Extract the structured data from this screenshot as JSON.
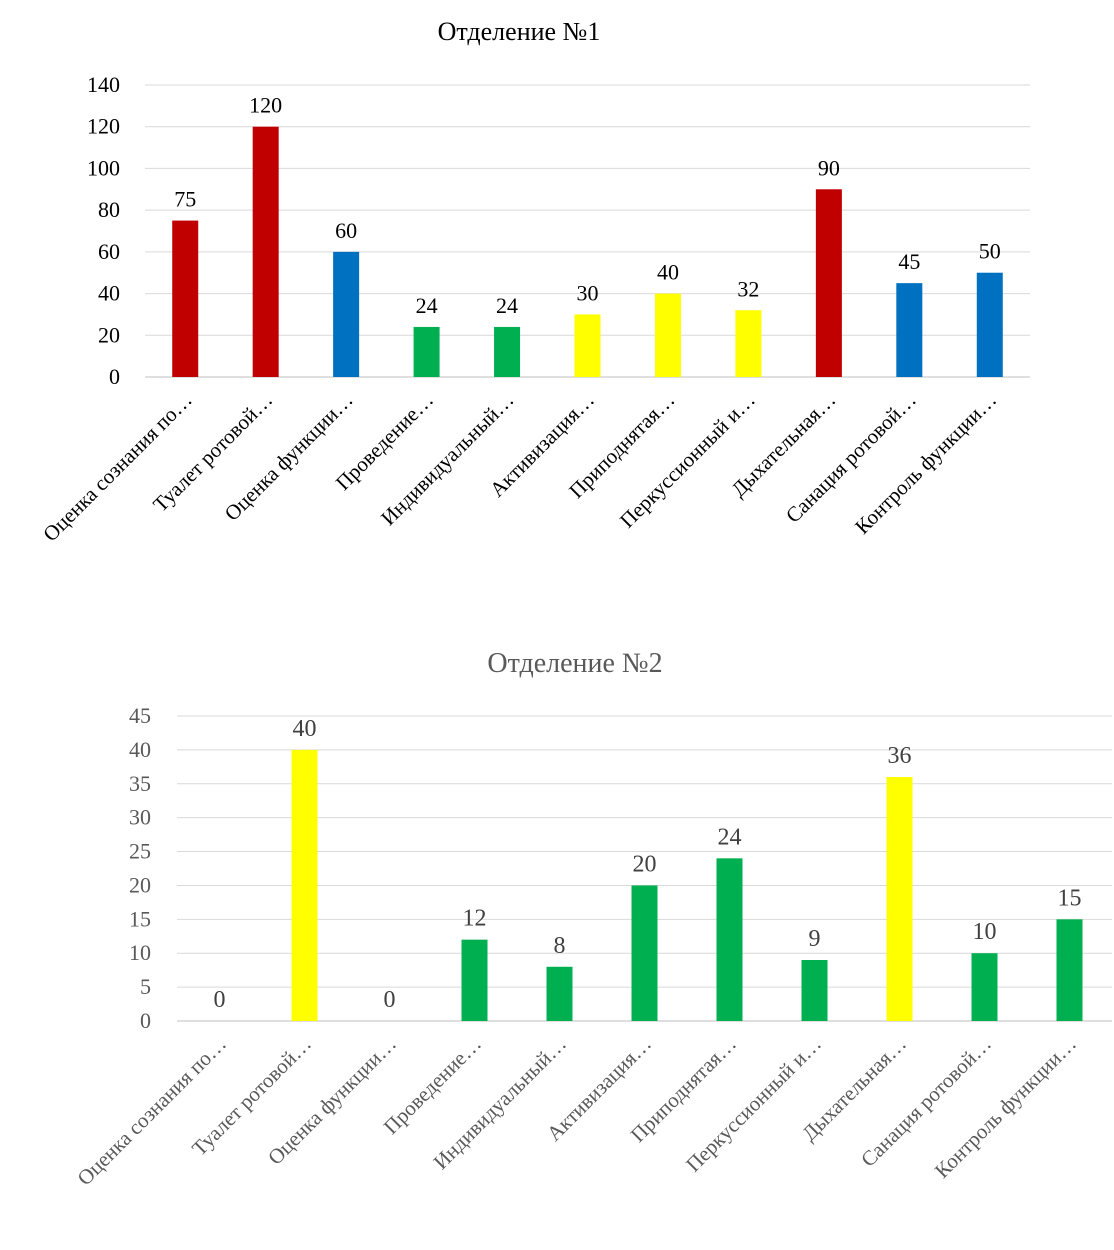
{
  "chart_data": [
    {
      "type": "bar",
      "title": "Отделение №1",
      "categories": [
        "Оценка сознания по…",
        "Туалет ротовой…",
        "Оценка функции…",
        "Проведение…",
        "Индивидуальный…",
        "Активизация…",
        "Приподнятая…",
        "Перкуссионный и…",
        "Дыхательная…",
        "Санация ротовой…",
        "Контроль функции…"
      ],
      "values": [
        75,
        120,
        60,
        24,
        24,
        30,
        40,
        32,
        90,
        45,
        50
      ],
      "bar_colors": [
        "#c00000",
        "#c00000",
        "#0070c0",
        "#00b050",
        "#00b050",
        "#ffff00",
        "#ffff00",
        "#ffff00",
        "#c00000",
        "#0070c0",
        "#0070c0"
      ],
      "yticks": [
        "0",
        "20",
        "40",
        "60",
        "80",
        "100",
        "120",
        "140"
      ],
      "ylim": [
        0,
        140
      ],
      "grid": true,
      "legend": "none",
      "data_labels": [
        "75",
        "120",
        "60",
        "24",
        "24",
        "30",
        "40",
        "32",
        "90",
        "45",
        "50"
      ]
    },
    {
      "type": "bar",
      "title": "Отделение №2",
      "categories": [
        "Оценка сознания по…",
        "Туалет ротовой…",
        "Оценка функции…",
        "Проведение…",
        "Индивидуальный…",
        "Активизация…",
        "Приподнятая…",
        "Перкуссионный и…",
        "Дыхательная…",
        "Санация ротовой…",
        "Контроль функции…"
      ],
      "values": [
        0,
        40,
        0,
        12,
        8,
        20,
        24,
        9,
        36,
        10,
        15
      ],
      "bar_colors": [
        "#00b050",
        "#ffff00",
        "#00b050",
        "#00b050",
        "#00b050",
        "#00b050",
        "#00b050",
        "#00b050",
        "#ffff00",
        "#00b050",
        "#00b050"
      ],
      "yticks": [
        "0",
        "5",
        "10",
        "15",
        "20",
        "25",
        "30",
        "35",
        "40",
        "45"
      ],
      "ylim": [
        0,
        45
      ],
      "grid": true,
      "legend": "none",
      "data_labels": [
        "0",
        "40",
        "0",
        "12",
        "8",
        "20",
        "24",
        "9",
        "36",
        "10",
        "15"
      ]
    }
  ]
}
